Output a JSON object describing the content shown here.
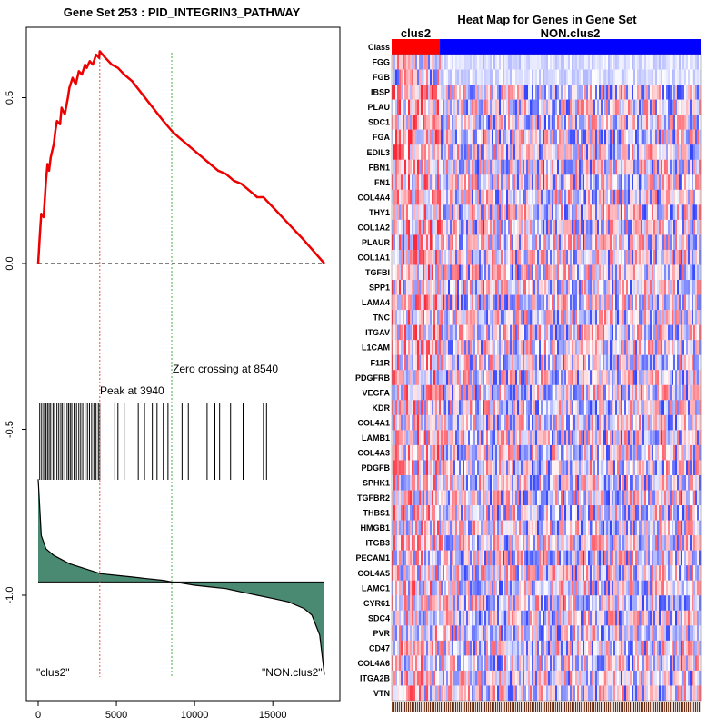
{
  "chart_data": [
    {
      "type": "line",
      "title": "Gene Set  253 : PID_INTEGRIN3_PATHWAY",
      "xlim": [
        0,
        18500
      ],
      "ylim": [
        -1.3,
        0.65
      ],
      "x_ticks": [
        0,
        5000,
        10000,
        15000
      ],
      "y_ticks": [
        0.0,
        -0.5,
        -1.0
      ],
      "y_tick_extra": 0.5,
      "enrichment_score": {
        "x": [
          0,
          100,
          200,
          350,
          500,
          600,
          700,
          800,
          1000,
          1100,
          1200,
          1400,
          1500,
          1700,
          1900,
          2000,
          2200,
          2400,
          2600,
          2800,
          3000,
          3100,
          3300,
          3500,
          3700,
          3900,
          3940,
          4300,
          4700,
          5100,
          5500,
          6000,
          6500,
          7000,
          7500,
          8000,
          8540,
          9000,
          9500,
          10000,
          10500,
          11000,
          11500,
          12000,
          12500,
          13000,
          13500,
          14000,
          14400,
          14600,
          15000,
          16000,
          17000,
          18300
        ],
        "y": [
          0.0,
          0.08,
          0.15,
          0.14,
          0.25,
          0.3,
          0.28,
          0.32,
          0.36,
          0.4,
          0.43,
          0.42,
          0.47,
          0.45,
          0.5,
          0.53,
          0.56,
          0.54,
          0.58,
          0.57,
          0.6,
          0.59,
          0.61,
          0.6,
          0.63,
          0.62,
          0.64,
          0.62,
          0.6,
          0.59,
          0.57,
          0.55,
          0.52,
          0.49,
          0.46,
          0.43,
          0.4,
          0.38,
          0.36,
          0.34,
          0.32,
          0.3,
          0.28,
          0.27,
          0.25,
          0.24,
          0.22,
          0.2,
          0.2,
          0.19,
          0.17,
          0.12,
          0.07,
          0.0
        ]
      },
      "hit_positions": [
        100,
        220,
        350,
        500,
        600,
        700,
        800,
        950,
        1050,
        1200,
        1320,
        1450,
        1550,
        1700,
        1850,
        1950,
        2050,
        2150,
        2300,
        2450,
        2600,
        2720,
        2850,
        3000,
        3150,
        3280,
        3420,
        3560,
        3700,
        3850,
        3940,
        4900,
        5100,
        5500,
        6400,
        6800,
        7300,
        7600,
        8000,
        8300,
        9200,
        9600,
        10800,
        11300,
        11600,
        12300,
        13100,
        14400,
        14600
      ],
      "ranked_metric": {
        "x": [
          0,
          200,
          500,
          1000,
          2000,
          3000,
          4000,
          5000,
          6000,
          7000,
          8000,
          8540,
          9000,
          10000,
          11000,
          12000,
          13000,
          14000,
          15000,
          16000,
          17000,
          17500,
          18000,
          18300
        ],
        "y": [
          -0.65,
          -0.82,
          -0.86,
          -0.88,
          -0.905,
          -0.92,
          -0.935,
          -0.94,
          -0.945,
          -0.95,
          -0.955,
          -0.96,
          -0.962,
          -0.97,
          -0.975,
          -0.98,
          -0.99,
          -1.0,
          -1.01,
          -1.02,
          -1.04,
          -1.06,
          -1.12,
          -1.24
        ]
      },
      "baseline": -0.96,
      "peak_x": 3940,
      "zero_crossing_x": 8540,
      "peak_label": "Peak at 3940",
      "zero_label": "Zero crossing at 8540",
      "left_class_label": "\"clus2\"",
      "right_class_label": "\"NON.clus2\"",
      "colors": {
        "es_line": "#ee0000",
        "fill": "#4a8a72",
        "peak_line": "#e05050",
        "zero_line": "#40b040"
      }
    },
    {
      "type": "heatmap",
      "title": "Heat Map for Genes in Gene Set",
      "class_row_label": "Class",
      "classes": [
        {
          "name": "clus2",
          "color": "#ff0000",
          "fraction": 0.156
        },
        {
          "name": "NON.clus2",
          "color": "#0000ff",
          "fraction": 0.844
        }
      ],
      "genes": [
        "FGG",
        "FGB",
        "IBSP",
        "PLAU",
        "SDC1",
        "FGA",
        "EDIL3",
        "FBN1",
        "FN1",
        "COL4A4",
        "THY1",
        "COL1A2",
        "PLAUR",
        "COL1A1",
        "TGFBI",
        "SPP1",
        "LAMA4",
        "TNC",
        "ITGAV",
        "L1CAM",
        "F11R",
        "PDGFRB",
        "VEGFA",
        "KDR",
        "COL4A1",
        "LAMB1",
        "COL4A3",
        "PDGFB",
        "SPHK1",
        "TGFBR2",
        "THBS1",
        "HMGB1",
        "ITGB3",
        "PECAM1",
        "COL4A5",
        "LAMC1",
        "CYR61",
        "SDC4",
        "PVR",
        "CD47",
        "COL4A6",
        "ITGA2B",
        "VTN"
      ],
      "colors": {
        "high": "#e00000",
        "low": "#0000cc",
        "mid": "#ffffff"
      }
    }
  ]
}
